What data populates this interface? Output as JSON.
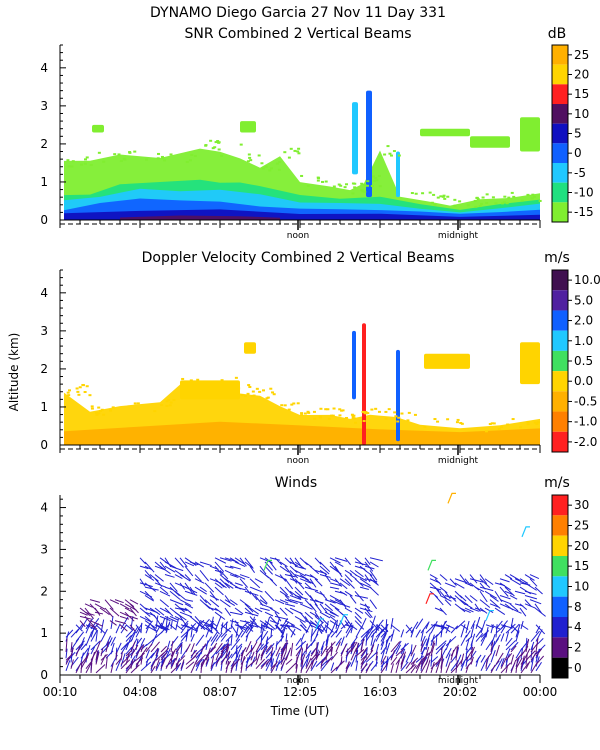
{
  "header": {
    "line1": "DYNAMO Diego Garcia  27 Nov 11 Day 331"
  },
  "chart_data": [
    {
      "id": "snr",
      "type": "heatmap",
      "title": "SNR Combined 2 Vertical Beams",
      "unit": "dB",
      "ylabel": "",
      "ylim": [
        0,
        4.6
      ],
      "yticks": [
        "0",
        "1",
        "2",
        "3",
        "4"
      ],
      "markers": [
        "noon",
        "midnight"
      ],
      "colorbar": {
        "labels": [
          "25",
          "20",
          "15",
          "10",
          "5",
          "0",
          "-5",
          "-10",
          "-15"
        ],
        "colors": [
          "#ffb000",
          "#ffd400",
          "#ff2020",
          "#501060",
          "#1010c0",
          "#1060ff",
          "#20c8ff",
          "#20e080",
          "#80ee30"
        ]
      },
      "layers": [
        {
          "color": "#80ee30",
          "hours": [
            0.2,
            1.5,
            3,
            5,
            7,
            8,
            9,
            10,
            11,
            12,
            13.5,
            14.5,
            15.2,
            16,
            17,
            18.5,
            19.5,
            21,
            22.5,
            24
          ],
          "top": [
            1.5,
            1.6,
            1.7,
            1.6,
            1.9,
            1.8,
            1.6,
            1.4,
            1.7,
            1.0,
            0.9,
            0.8,
            1.0,
            1.8,
            0.6,
            0.5,
            0.4,
            0.5,
            0.6,
            0.7
          ]
        },
        {
          "color": "#20e080",
          "hours": [
            0.2,
            1.5,
            3,
            5,
            7,
            8,
            9,
            10,
            12,
            14,
            16,
            18,
            20,
            22,
            24
          ],
          "top": [
            0.7,
            0.7,
            0.9,
            1.0,
            1.1,
            1.0,
            1.0,
            0.9,
            0.7,
            0.6,
            0.6,
            0.4,
            0.3,
            0.4,
            0.5
          ]
        },
        {
          "color": "#20c8ff",
          "hours": [
            0.2,
            2,
            4,
            6,
            8,
            10,
            12,
            14,
            16,
            18,
            20,
            22,
            24
          ],
          "top": [
            0.5,
            0.6,
            0.8,
            0.8,
            0.8,
            0.7,
            0.5,
            0.4,
            0.4,
            0.3,
            0.2,
            0.3,
            0.4
          ]
        },
        {
          "color": "#1060ff",
          "hours": [
            0.2,
            2,
            4,
            6,
            8,
            10,
            12,
            14,
            16,
            18,
            20,
            22,
            24
          ],
          "top": [
            0.3,
            0.4,
            0.55,
            0.5,
            0.5,
            0.4,
            0.3,
            0.25,
            0.25,
            0.2,
            0.15,
            0.2,
            0.25
          ]
        },
        {
          "color": "#1010c0",
          "hours": [
            0.2,
            4,
            8,
            12,
            16,
            20,
            24
          ],
          "top": [
            0.18,
            0.25,
            0.25,
            0.2,
            0.16,
            0.12,
            0.15
          ]
        },
        {
          "color": "#501060",
          "hours": [
            3,
            6,
            9,
            11
          ],
          "top": [
            0.08,
            0.12,
            0.1,
            0.08
          ]
        }
      ],
      "upper_clouds": [
        {
          "color": "#80ee30",
          "h0": 18.0,
          "h1": 20.5,
          "z0": 2.2,
          "z1": 2.4
        },
        {
          "color": "#80ee30",
          "h0": 20.5,
          "h1": 22.5,
          "z0": 1.9,
          "z1": 2.2
        },
        {
          "color": "#80ee30",
          "h0": 23.0,
          "h1": 24.0,
          "z0": 1.8,
          "z1": 2.7
        },
        {
          "color": "#80ee30",
          "h0": 9.0,
          "h1": 9.8,
          "z0": 2.3,
          "z1": 2.6
        },
        {
          "color": "#80ee30",
          "h0": 1.6,
          "h1": 2.2,
          "z0": 2.3,
          "z1": 2.5
        },
        {
          "color": "#20c8ff",
          "h0": 14.6,
          "h1": 14.9,
          "z0": 1.2,
          "z1": 3.1
        },
        {
          "color": "#1060ff",
          "h0": 15.3,
          "h1": 15.6,
          "z0": 0.6,
          "z1": 3.4
        },
        {
          "color": "#20c8ff",
          "h0": 16.8,
          "h1": 17.0,
          "z0": 0.6,
          "z1": 1.8
        }
      ]
    },
    {
      "id": "doppler",
      "type": "heatmap",
      "title": "Doppler Velocity Combined 2 Vertical Beams",
      "unit": "m/s",
      "ylabel": "Altitude (km)",
      "ylim": [
        0,
        4.6
      ],
      "yticks": [
        "0",
        "1",
        "2",
        "3",
        "4"
      ],
      "markers": [
        "noon",
        "midnight"
      ],
      "colorbar": {
        "labels": [
          "10.0",
          "5.0",
          "2.0",
          "1.0",
          "0.5",
          "0.0",
          "-0.5",
          "-1.0",
          "-2.0"
        ],
        "colors": [
          "#401050",
          "#5020a0",
          "#1060ff",
          "#20c8ff",
          "#40e060",
          "#ffd400",
          "#ffb000",
          "#ff8000",
          "#ff2020"
        ]
      },
      "layers": [
        {
          "color": "#ffd400",
          "hours": [
            0.2,
            1.5,
            3,
            5,
            6,
            8,
            9,
            10,
            11,
            12,
            13.5,
            14.5,
            15.5,
            16.8,
            18,
            20,
            22,
            24
          ],
          "top": [
            1.4,
            0.9,
            1.0,
            1.1,
            1.6,
            1.6,
            1.4,
            1.3,
            1.0,
            0.8,
            0.8,
            0.7,
            0.8,
            0.7,
            0.5,
            0.4,
            0.5,
            0.7
          ]
        },
        {
          "color": "#ffb000",
          "hours": [
            0.2,
            4,
            8,
            12,
            16,
            20,
            24
          ],
          "top": [
            0.4,
            0.5,
            0.6,
            0.5,
            0.4,
            0.3,
            0.4
          ]
        }
      ],
      "upper_clouds": [
        {
          "color": "#ffd400",
          "h0": 18.2,
          "h1": 20.5,
          "z0": 2.0,
          "z1": 2.4
        },
        {
          "color": "#ffd400",
          "h0": 23.0,
          "h1": 24.0,
          "z0": 1.6,
          "z1": 2.7
        },
        {
          "color": "#ffd400",
          "h0": 9.2,
          "h1": 9.8,
          "z0": 2.4,
          "z1": 2.7
        },
        {
          "color": "#ffd400",
          "h0": 6.0,
          "h1": 9.0,
          "z0": 1.2,
          "z1": 1.7
        },
        {
          "color": "#1060ff",
          "h0": 14.6,
          "h1": 14.8,
          "z0": 1.2,
          "z1": 3.0
        },
        {
          "color": "#ff2020",
          "h0": 15.1,
          "h1": 15.3,
          "z0": 0.0,
          "z1": 3.2
        },
        {
          "color": "#1060ff",
          "h0": 16.8,
          "h1": 17.0,
          "z0": 0.1,
          "z1": 2.5
        }
      ]
    },
    {
      "id": "winds",
      "type": "scatter",
      "title": "Winds",
      "unit": "m/s",
      "xlabel": "Time (UT)",
      "ylim": [
        0,
        4.3
      ],
      "yticks": [
        "0",
        "1",
        "2",
        "3",
        "4"
      ],
      "xticks": [
        "00:10",
        "04:08",
        "08:07",
        "12:05",
        "16:03",
        "20:02",
        "00:00"
      ],
      "markers": [
        "noon",
        "midnight"
      ],
      "colorbar": {
        "labels": [
          "30",
          "25",
          "20",
          "15",
          "10",
          "8",
          "4",
          "2",
          "0"
        ],
        "colors": [
          "#ff2020",
          "#ff8000",
          "#ffd400",
          "#40e060",
          "#20c8ff",
          "#1060ff",
          "#2020d0",
          "#5a1080",
          "#000000"
        ]
      },
      "wind_regions": [
        {
          "h0": 0.3,
          "h1": 24.0,
          "z0": 0.1,
          "z1": 1.2,
          "color": "#2020d0"
        },
        {
          "h0": 0.3,
          "h1": 24.0,
          "z0": 0.05,
          "z1": 0.6,
          "color": "#5a1080"
        },
        {
          "h0": 4.0,
          "h1": 15.5,
          "z0": 1.2,
          "z1": 2.9,
          "color": "#2020d0"
        },
        {
          "h0": 18.5,
          "h1": 23.8,
          "z0": 1.6,
          "z1": 2.5,
          "color": "#2020d0"
        },
        {
          "h0": 1.0,
          "h1": 3.5,
          "z0": 1.2,
          "z1": 1.9,
          "color": "#5a1080"
        }
      ],
      "wind_highlights": [
        {
          "h": 19.4,
          "z": 4.1,
          "color": "#ffb000"
        },
        {
          "h": 18.3,
          "z": 1.7,
          "color": "#ff2020"
        },
        {
          "h": 18.4,
          "z": 2.5,
          "color": "#40e060"
        },
        {
          "h": 23.1,
          "z": 3.3,
          "color": "#20c8ff"
        },
        {
          "h": 14.0,
          "z": 1.2,
          "color": "#20c8ff"
        },
        {
          "h": 12.8,
          "z": 1.1,
          "color": "#20c8ff"
        },
        {
          "h": 21.3,
          "z": 1.3,
          "color": "#20c8ff"
        },
        {
          "h": 10.2,
          "z": 2.5,
          "color": "#40e060"
        }
      ]
    }
  ]
}
